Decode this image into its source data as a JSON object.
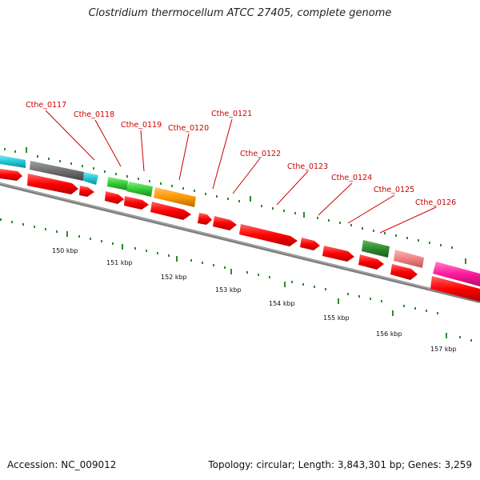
{
  "title": "Clostridium thermocellum ATCC 27405, complete genome",
  "footer": {
    "accession": "Accession: NC_009012",
    "topology": "Topology: circular; Length: 3,843,301 bp; Genes: 3,259"
  },
  "gene_labels": [
    "Cthe_0117",
    "Cthe_0118",
    "Cthe_0119",
    "Cthe_0120",
    "Cthe_0121",
    "Cthe_0122",
    "Cthe_0123",
    "Cthe_0124",
    "Cthe_0125",
    "Cthe_0126"
  ],
  "kbp_labels": [
    "150 kbp",
    "151 kbp",
    "152 kbp",
    "153 kbp",
    "154 kbp",
    "155 kbp",
    "156 kbp",
    "157 kbp"
  ],
  "colors": {
    "gene_label": "#cc0000",
    "cds": "#ff0000",
    "tick": "#2e8b2e",
    "backbone": "#808080",
    "cyan": "#20c8d8",
    "gray": "#707070",
    "light_green": "#33cc33",
    "orange": "#ff9900",
    "dark_green": "#2e8b2e",
    "salmon": "#f08080",
    "magenta": "#ff1a9c"
  }
}
